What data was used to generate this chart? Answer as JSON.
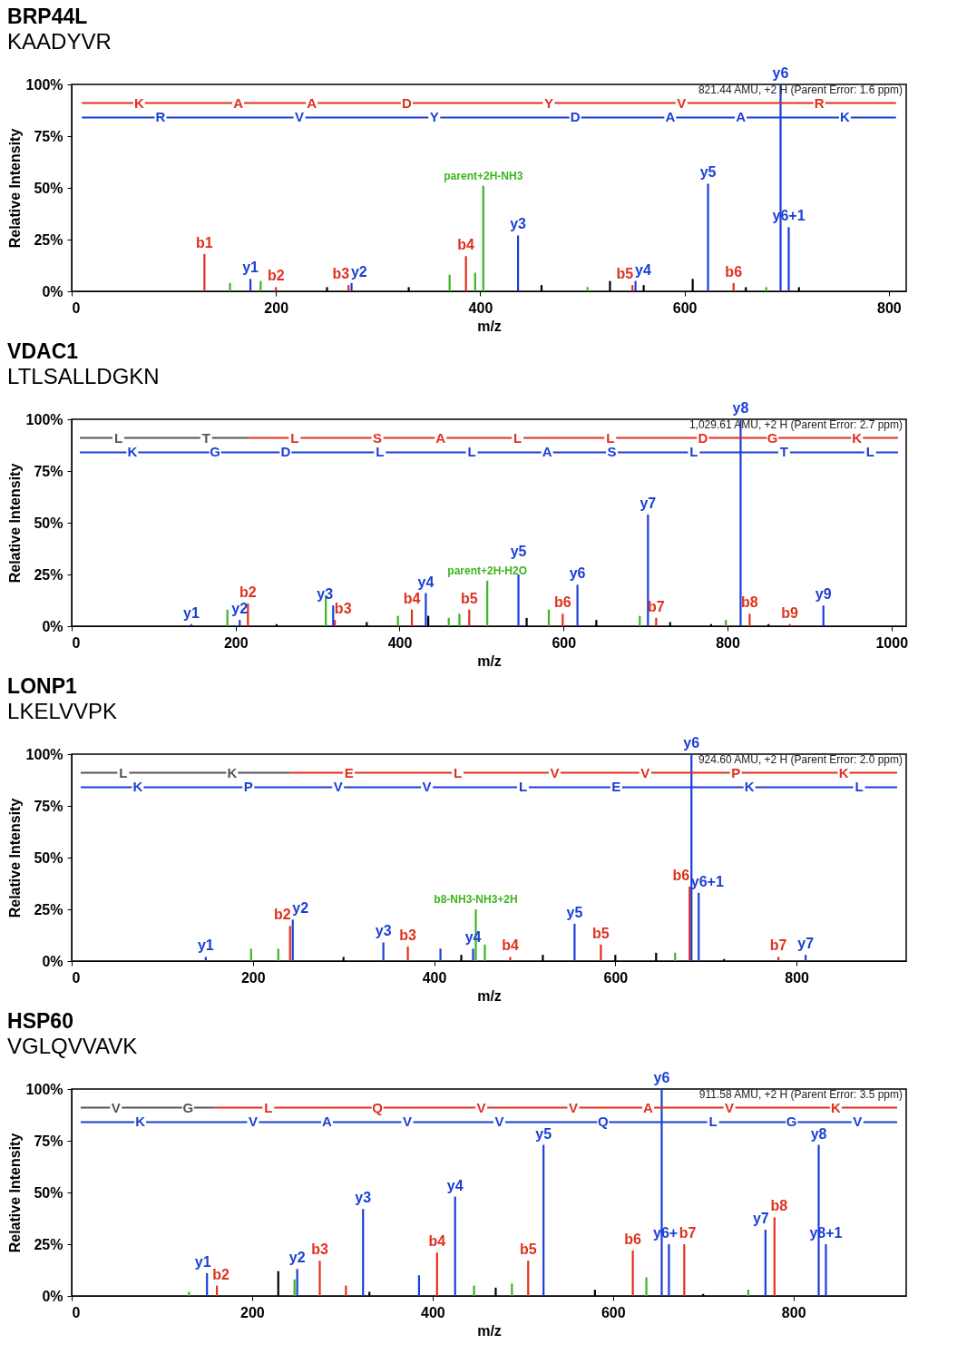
{
  "chart_data": [
    {
      "type": "bar",
      "title": "BRP44L",
      "subtitle": "KAADYVR",
      "xlabel": "m/z",
      "ylabel": "Relative Intensity",
      "xlim": [
        0,
        817
      ],
      "xticks": [
        0,
        200,
        400,
        600,
        800
      ],
      "ylim": [
        0,
        100
      ],
      "yticks": [
        {
          "value": 0,
          "label": "0%"
        },
        {
          "value": 25,
          "label": "25%"
        },
        {
          "value": 50,
          "label": "50%"
        },
        {
          "value": 75,
          "label": "75%"
        },
        {
          "value": 100,
          "label": "100%"
        }
      ],
      "series": [
        {
          "color": "#e0301e",
          "x": [
            130,
            200,
            271,
            386,
            549,
            648
          ],
          "values": [
            18,
            2,
            3,
            17,
            3,
            4
          ],
          "value_labels": [
            "b1",
            "b2",
            "b3",
            "b4",
            "b5",
            "b6"
          ]
        },
        {
          "color": "#1a3fd6",
          "x": [
            175,
            274,
            437,
            552,
            623,
            694,
            702
          ],
          "values": [
            6,
            4,
            27,
            5,
            52,
            100,
            31
          ],
          "value_labels": [
            "y1",
            "y2",
            "y3",
            "y4",
            "y5",
            "y6",
            "y6+1"
          ]
        },
        {
          "color": "#3cb521",
          "x": [
            155,
            185,
            370,
            395,
            403,
            505,
            680
          ],
          "values": [
            4,
            5,
            8,
            9,
            51,
            2,
            2
          ],
          "value_labels": [
            null,
            null,
            null,
            null,
            "parent+2H-NH3",
            null,
            null
          ]
        },
        {
          "color": "#000000",
          "x": [
            250,
            330,
            460,
            527,
            560,
            608,
            660,
            712
          ],
          "values": [
            2,
            2,
            3,
            5,
            3,
            6,
            2,
            2
          ]
        },
        {
          "type": "line",
          "color": "#e0301e",
          "x": [
            10,
            130,
            200,
            271,
            386,
            549,
            648,
            807
          ],
          "values": [
            91,
            91,
            91,
            91,
            91,
            91,
            91,
            91
          ]
        },
        {
          "type": "line",
          "color": "#1a3fd6",
          "x": [
            10,
            175,
            274,
            437,
            552,
            623,
            694,
            807
          ],
          "values": [
            84,
            84,
            84,
            84,
            84,
            84,
            84,
            84
          ]
        }
      ],
      "annotations": [
        "821.44 AMU, +2 H (Parent Error: 1.6 ppm)",
        {
          "text": "K",
          "x": 66,
          "y": 91
        },
        {
          "text": "A",
          "x": 163,
          "y": 91
        },
        {
          "text": "A",
          "x": 235,
          "y": 91
        },
        {
          "text": "D",
          "x": 328,
          "y": 91
        },
        {
          "text": "Y",
          "x": 467,
          "y": 91
        },
        {
          "text": "V",
          "x": 597,
          "y": 91
        },
        {
          "text": "R",
          "x": 732,
          "y": 91
        },
        {
          "text": "R",
          "x": 87,
          "y": 84
        },
        {
          "text": "V",
          "x": 223,
          "y": 84
        },
        {
          "text": "Y",
          "x": 355,
          "y": 84
        },
        {
          "text": "D",
          "x": 493,
          "y": 84
        },
        {
          "text": "A",
          "x": 586,
          "y": 84
        },
        {
          "text": "A",
          "x": 655,
          "y": 84
        },
        {
          "text": "K",
          "x": 757,
          "y": 84
        }
      ]
    },
    {
      "type": "bar",
      "title": "VDAC1",
      "subtitle": "LTLSALLDGKN",
      "xlabel": "m/z",
      "ylabel": "Relative Intensity",
      "xlim": [
        0,
        1018
      ],
      "xticks": [
        0,
        200,
        400,
        600,
        800,
        1000
      ],
      "ylim": [
        0,
        100
      ],
      "yticks": [
        {
          "value": 0,
          "label": "0%"
        },
        {
          "value": 25,
          "label": "25%"
        },
        {
          "value": 50,
          "label": "50%"
        },
        {
          "value": 75,
          "label": "75%"
        },
        {
          "value": 100,
          "label": "100%"
        }
      ],
      "series": [
        {
          "color": "#e0301e",
          "x": [
            215,
            321,
            415,
            485,
            599,
            713,
            827,
            876
          ],
          "values": [
            11,
            3,
            8,
            8,
            6,
            4,
            6,
            1
          ],
          "value_labels": [
            "b2",
            "b3",
            "b4",
            "b5",
            "b6",
            "b7",
            "b8",
            "b9"
          ]
        },
        {
          "color": "#1a3fd6",
          "x": [
            146,
            205,
            319,
            432,
            545,
            617,
            703,
            816,
            917
          ],
          "values": [
            1,
            3,
            10,
            16,
            25,
            20,
            54,
            100,
            10
          ],
          "value_labels": [
            "y1",
            "y2",
            "y3",
            "y4",
            "y5",
            "y6",
            "y7",
            "y8",
            "y9"
          ]
        },
        {
          "color": "#3cb521",
          "x": [
            190,
            310,
            398,
            460,
            473,
            507,
            582,
            693,
            798
          ],
          "values": [
            8,
            15,
            5,
            4,
            6,
            22,
            8,
            5,
            3
          ],
          "value_labels": [
            null,
            null,
            null,
            null,
            null,
            "parent+2H-H2O",
            null,
            null,
            null
          ]
        },
        {
          "color": "#000000",
          "x": [
            250,
            360,
            435,
            555,
            640,
            730,
            780,
            850
          ],
          "values": [
            1,
            2,
            5,
            4,
            3,
            2,
            1,
            1
          ]
        },
        {
          "type": "line",
          "color": "#555555",
          "x": [
            10,
            115,
            215
          ],
          "values": [
            91,
            91,
            91
          ]
        },
        {
          "type": "line",
          "color": "#e0301e",
          "x": [
            215,
            328,
            415,
            486,
            599,
            712,
            827,
            884,
            1008
          ],
          "values": [
            91,
            91,
            91,
            91,
            91,
            91,
            91,
            91,
            91
          ]
        },
        {
          "type": "line",
          "color": "#1a3fd6",
          "x": [
            10,
            147,
            205,
            320,
            432,
            545,
            617,
            703,
            816,
            917,
            1008
          ],
          "values": [
            84,
            84,
            84,
            84,
            84,
            84,
            84,
            84,
            84,
            84,
            84
          ]
        }
      ],
      "annotations": [
        "1,029.61 AMU, +2 H (Parent Error: 2.7 ppm)",
        {
          "text": "L",
          "x": 57,
          "y": 91
        },
        {
          "text": "T",
          "x": 164,
          "y": 91
        },
        {
          "text": "L",
          "x": 272,
          "y": 91
        },
        {
          "text": "S",
          "x": 373,
          "y": 91
        },
        {
          "text": "A",
          "x": 450,
          "y": 91
        },
        {
          "text": "L",
          "x": 544,
          "y": 91
        },
        {
          "text": "L",
          "x": 657,
          "y": 91
        },
        {
          "text": "D",
          "x": 770,
          "y": 91
        },
        {
          "text": "G",
          "x": 855,
          "y": 91
        },
        {
          "text": "K",
          "x": 958,
          "y": 91
        },
        {
          "text": "K",
          "x": 74,
          "y": 84
        },
        {
          "text": "G",
          "x": 175,
          "y": 84
        },
        {
          "text": "D",
          "x": 261,
          "y": 84
        },
        {
          "text": "L",
          "x": 376,
          "y": 84
        },
        {
          "text": "L",
          "x": 488,
          "y": 84
        },
        {
          "text": "A",
          "x": 580,
          "y": 84
        },
        {
          "text": "S",
          "x": 659,
          "y": 84
        },
        {
          "text": "L",
          "x": 759,
          "y": 84
        },
        {
          "text": "T",
          "x": 869,
          "y": 84
        },
        {
          "text": "L",
          "x": 974,
          "y": 84
        }
      ]
    },
    {
      "type": "bar",
      "title": "LONP1",
      "subtitle": "LKELVVPK",
      "xlabel": "m/z",
      "ylabel": "Relative Intensity",
      "xlim": [
        0,
        921
      ],
      "xticks": [
        0,
        200,
        400,
        600,
        800
      ],
      "ylim": [
        0,
        100
      ],
      "yticks": [
        {
          "value": 0,
          "label": "0%"
        },
        {
          "value": 25,
          "label": "25%"
        },
        {
          "value": 50,
          "label": "50%"
        },
        {
          "value": 75,
          "label": "75%"
        },
        {
          "value": 100,
          "label": "100%"
        }
      ],
      "series": [
        {
          "color": "#e0301e",
          "x": [
            241,
            371,
            484,
            584,
            682,
            780
          ],
          "values": [
            17,
            7,
            2,
            8,
            36,
            2
          ],
          "value_labels": [
            "b2",
            "b3",
            "b4",
            "b5",
            "b6",
            "b7"
          ]
        },
        {
          "color": "#1a3fd6",
          "x": [
            148,
            244,
            344,
            407,
            443,
            555,
            684,
            692,
            810
          ],
          "values": [
            2,
            20,
            9,
            6,
            6,
            18,
            100,
            33,
            3
          ],
          "value_labels": [
            "y1",
            "y2",
            "y3",
            null,
            "y4",
            "y5",
            "y6",
            "y6+1",
            "y7"
          ]
        },
        {
          "color": "#3cb521",
          "x": [
            198,
            228,
            446,
            456,
            666
          ],
          "values": [
            6,
            6,
            25,
            8,
            4
          ],
          "value_labels": [
            null,
            null,
            "b8-NH3-NH3+2H",
            null,
            null
          ]
        },
        {
          "color": "#000000",
          "x": [
            300,
            430,
            520,
            600,
            645,
            720
          ],
          "values": [
            2,
            3,
            3,
            3,
            4,
            1
          ]
        },
        {
          "type": "line",
          "color": "#555555",
          "x": [
            10,
            115,
            242
          ],
          "values": [
            91,
            91,
            91
          ]
        },
        {
          "type": "line",
          "color": "#e0301e",
          "x": [
            242,
            371,
            484,
            584,
            682,
            780,
            911
          ],
          "values": [
            91,
            91,
            91,
            91,
            91,
            91,
            91
          ]
        },
        {
          "type": "line",
          "color": "#1a3fd6",
          "x": [
            10,
            148,
            244,
            344,
            443,
            555,
            684,
            810,
            911
          ],
          "values": [
            84,
            84,
            84,
            84,
            84,
            84,
            84,
            84,
            84
          ]
        }
      ],
      "annotations": [
        "924.60 AMU, +2 H (Parent Error: 2.0 ppm)",
        {
          "text": "L",
          "x": 57,
          "y": 91
        },
        {
          "text": "K",
          "x": 177,
          "y": 91
        },
        {
          "text": "E",
          "x": 306,
          "y": 91
        },
        {
          "text": "L",
          "x": 426,
          "y": 91
        },
        {
          "text": "V",
          "x": 533,
          "y": 91
        },
        {
          "text": "V",
          "x": 633,
          "y": 91
        },
        {
          "text": "P",
          "x": 733,
          "y": 91
        },
        {
          "text": "K",
          "x": 852,
          "y": 91
        },
        {
          "text": "K",
          "x": 73,
          "y": 84
        },
        {
          "text": "P",
          "x": 195,
          "y": 84
        },
        {
          "text": "V",
          "x": 294,
          "y": 84
        },
        {
          "text": "V",
          "x": 392,
          "y": 84
        },
        {
          "text": "L",
          "x": 498,
          "y": 84
        },
        {
          "text": "E",
          "x": 601,
          "y": 84
        },
        {
          "text": "K",
          "x": 748,
          "y": 84
        },
        {
          "text": "L",
          "x": 869,
          "y": 84
        }
      ]
    },
    {
      "type": "bar",
      "title": "HSP60",
      "subtitle": "VGLQVVAVK",
      "xlabel": "m/z",
      "ylabel": "Relative Intensity",
      "xlim": [
        0,
        925
      ],
      "xticks": [
        0,
        200,
        400,
        600,
        800
      ],
      "ylim": [
        0,
        100
      ],
      "yticks": [
        {
          "value": 0,
          "label": "0%"
        },
        {
          "value": 25,
          "label": "25%"
        },
        {
          "value": 50,
          "label": "50%"
        },
        {
          "value": 75,
          "label": "75%"
        },
        {
          "value": 100,
          "label": "100%"
        }
      ],
      "series": [
        {
          "color": "#e0301e",
          "x": [
            161,
            275,
            304,
            405,
            506,
            622,
            679,
            779
          ],
          "values": [
            5,
            17,
            5,
            21,
            17,
            22,
            25,
            38
          ],
          "value_labels": [
            "b2",
            "b3",
            null,
            "b4",
            "b5",
            "b6",
            "b7",
            "b8"
          ]
        },
        {
          "color": "#1a3fd6",
          "x": [
            150,
            250,
            323,
            385,
            425,
            523,
            654,
            662,
            769,
            828,
            836
          ],
          "values": [
            11,
            13,
            42,
            10,
            48,
            73,
            100,
            25,
            32,
            73,
            25
          ],
          "value_labels": [
            "y1",
            "y2",
            "y3",
            null,
            "y4",
            "y5",
            "y6",
            "y6+",
            "y7",
            "y8",
            "y8+1"
          ]
        },
        {
          "color": "#3cb521",
          "x": [
            130,
            247,
            446,
            488,
            637,
            750
          ],
          "values": [
            2,
            8,
            5,
            6,
            9,
            3
          ]
        },
        {
          "color": "#000000",
          "x": [
            229,
            330,
            470,
            580,
            700
          ],
          "values": [
            12,
            2,
            4,
            3,
            1
          ]
        },
        {
          "type": "line",
          "color": "#555555",
          "x": [
            10,
            100,
            158
          ],
          "values": [
            91,
            91,
            91
          ]
        },
        {
          "type": "line",
          "color": "#e0301e",
          "x": [
            158,
            275,
            405,
            506,
            606,
            679,
            779,
            915
          ],
          "values": [
            91,
            91,
            91,
            91,
            91,
            91,
            91,
            91
          ]
        },
        {
          "type": "line",
          "color": "#1a3fd6",
          "x": [
            10,
            150,
            250,
            323,
            425,
            523,
            654,
            769,
            828,
            915
          ],
          "values": [
            84,
            84,
            84,
            84,
            84,
            84,
            84,
            84,
            84,
            84
          ]
        }
      ],
      "annotations": [
        "911.58 AMU, +2 H (Parent Error: 3.5 ppm)",
        {
          "text": "V",
          "x": 49,
          "y": 91
        },
        {
          "text": "G",
          "x": 129,
          "y": 91
        },
        {
          "text": "L",
          "x": 218,
          "y": 91
        },
        {
          "text": "Q",
          "x": 339,
          "y": 91
        },
        {
          "text": "V",
          "x": 454,
          "y": 91
        },
        {
          "text": "V",
          "x": 556,
          "y": 91
        },
        {
          "text": "A",
          "x": 639,
          "y": 91
        },
        {
          "text": "V",
          "x": 729,
          "y": 91
        },
        {
          "text": "K",
          "x": 847,
          "y": 91
        },
        {
          "text": "K",
          "x": 76,
          "y": 84
        },
        {
          "text": "V",
          "x": 201,
          "y": 84
        },
        {
          "text": "A",
          "x": 283,
          "y": 84
        },
        {
          "text": "V",
          "x": 372,
          "y": 84
        },
        {
          "text": "V",
          "x": 474,
          "y": 84
        },
        {
          "text": "Q",
          "x": 589,
          "y": 84
        },
        {
          "text": "L",
          "x": 711,
          "y": 84
        },
        {
          "text": "G",
          "x": 798,
          "y": 84
        },
        {
          "text": "V",
          "x": 871,
          "y": 84
        }
      ]
    }
  ]
}
